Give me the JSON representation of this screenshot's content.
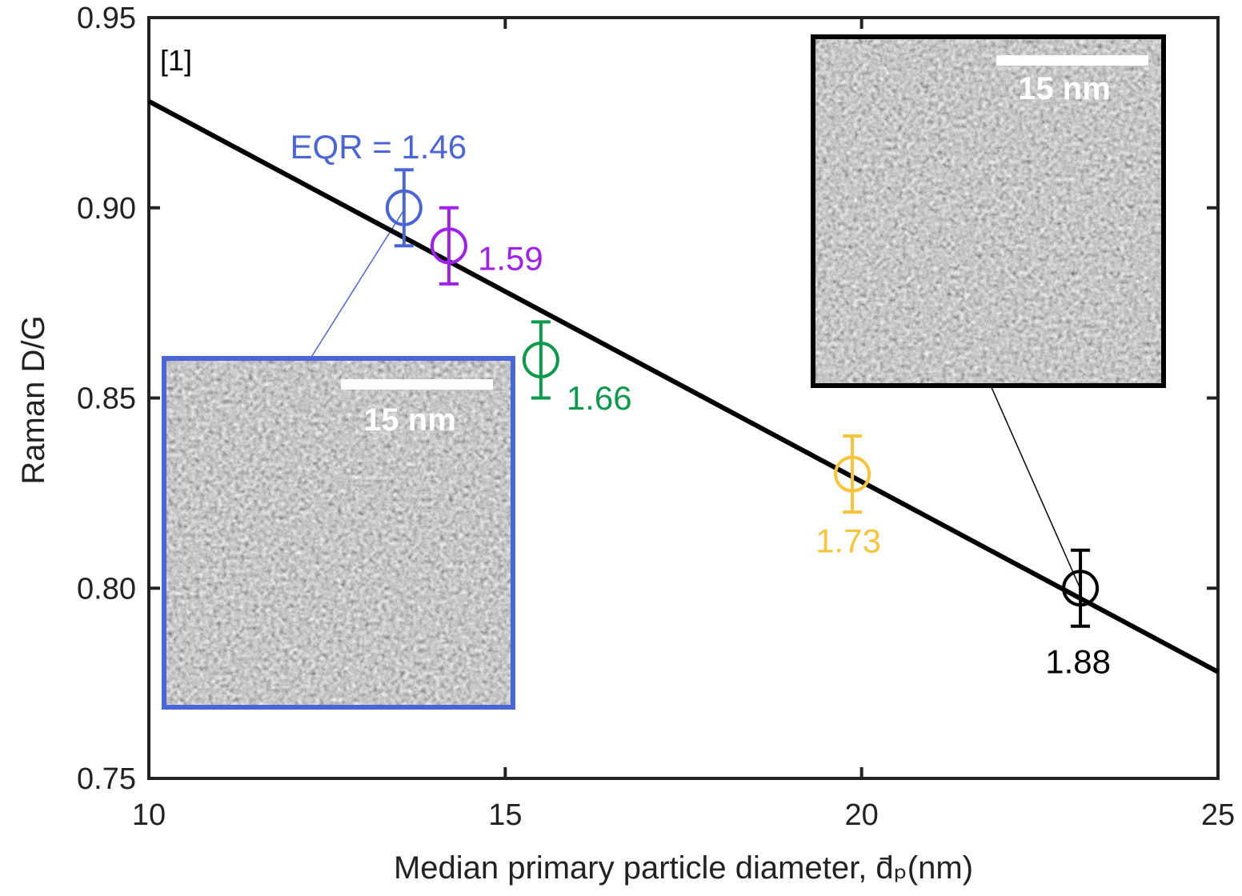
{
  "chart_data": {
    "type": "scatter",
    "annotation": "[1]",
    "y_label": "Raman  D/G",
    "x_label": "Median primary particle diameter, d̄ₚ(nm)",
    "xlim": [
      10,
      25
    ],
    "xticks": [
      10,
      15,
      20,
      25
    ],
    "ylim": [
      0.75,
      0.95
    ],
    "yticks": [
      0.75,
      {
        "value": 0.8,
        "label": "0.80"
      },
      0.85,
      {
        "value": 0.9,
        "label": "0.90"
      },
      0.95
    ],
    "grid": false,
    "fit": {
      "color": "#000000",
      "x": [
        10,
        25
      ],
      "values": [
        0.928,
        0.778
      ]
    },
    "series": [
      {
        "label": "EQR = 1.46",
        "color": "#4a66d6",
        "x": [
          13.58
        ],
        "values": [
          0.9
        ],
        "errors": [
          0.01
        ]
      },
      {
        "label": "1.59",
        "color": "#a020f0",
        "x": [
          14.21
        ],
        "values": [
          0.89
        ],
        "errors": [
          0.01
        ]
      },
      {
        "label": "1.66",
        "color": "#0b9a4a",
        "x": [
          15.5
        ],
        "values": [
          0.86
        ],
        "errors": [
          0.01
        ]
      },
      {
        "label": "1.73",
        "color": "#f7c43a",
        "x": [
          19.87
        ],
        "values": [
          0.83
        ],
        "errors": [
          0.01
        ]
      },
      {
        "label": "1.88",
        "color": "#000000",
        "x": [
          23.07
        ],
        "values": [
          0.8
        ],
        "errors": [
          0.01
        ]
      }
    ],
    "insets": [
      {
        "scale_bar": "15 nm"
      },
      {
        "scale_bar": "15 nm"
      }
    ]
  }
}
